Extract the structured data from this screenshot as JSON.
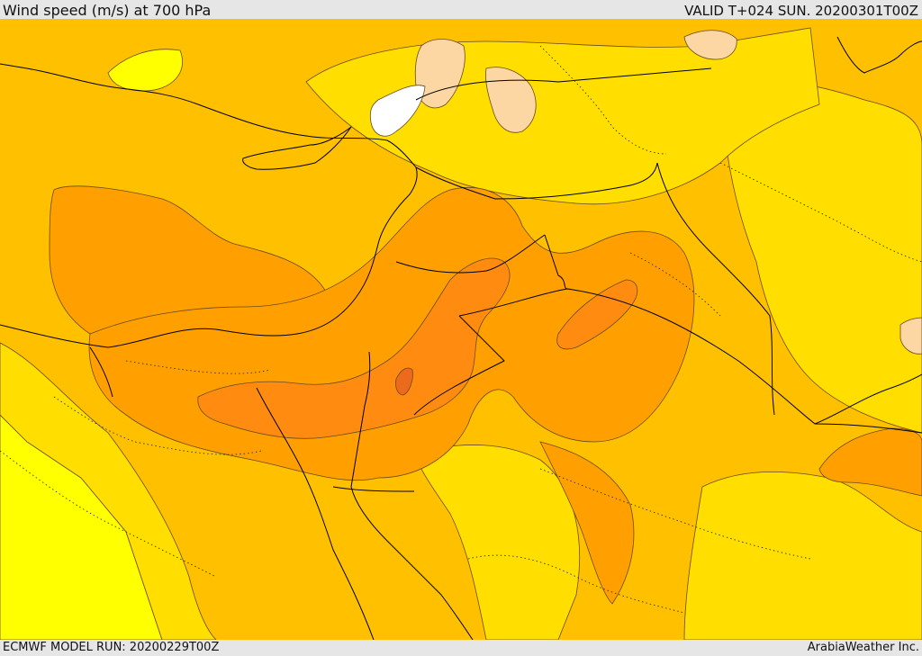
{
  "header": {
    "title": "Wind speed (m/s) at 700 hPa",
    "valid": "VALID T+024 SUN. 20200301T00Z"
  },
  "footer": {
    "model_run": "ECMWF MODEL RUN: 20200229T00Z",
    "credit": "ArabiaWeather Inc."
  },
  "map": {
    "colors": {
      "weak": "#ffff00",
      "light": "#ffde00",
      "moderate": "#ffc000",
      "fresh": "#ffa000",
      "strong": "#ff8c10",
      "very_strong": "#ff7a14",
      "core": "#ec6a1c",
      "calm_tan": "#fcd7a4",
      "calm_white": "#ffffff"
    }
  }
}
